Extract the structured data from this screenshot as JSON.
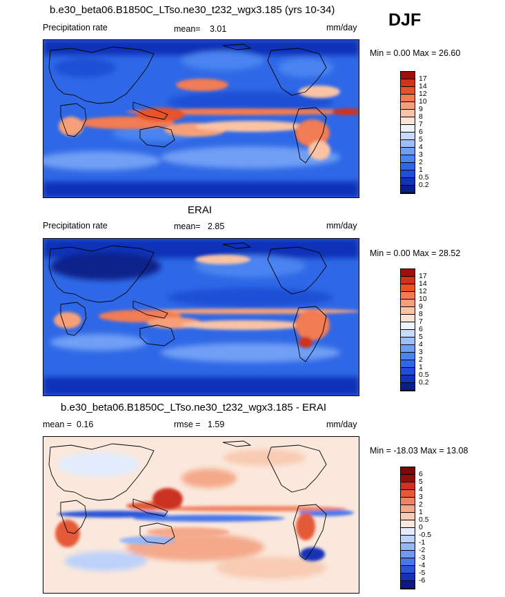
{
  "season": "DJF",
  "colors": {
    "precip_scale": [
      "#08208a",
      "#1133b8",
      "#1f4fd6",
      "#2f68e6",
      "#4a84f0",
      "#6f9ff5",
      "#9dbff8",
      "#c8dcfa",
      "#eef4fc",
      "#fbe3d3",
      "#f9c3a4",
      "#f6a07a",
      "#f27b52",
      "#e8522b",
      "#d2321a",
      "#a00f0b"
    ],
    "diff_scale": [
      "#0a1a80",
      "#1333b5",
      "#2a55d8",
      "#4a78ea",
      "#6f98f2",
      "#96b6f6",
      "#bcd2f9",
      "#e2ecfc",
      "#fbe8dc",
      "#f8cbb2",
      "#f4a98a",
      "#ee8462",
      "#e45a38",
      "#cc3220",
      "#8e0f0c"
    ]
  },
  "panels": [
    {
      "title": "b.e30_beta06.B1850C_LTso.ne30_t232_wgx3.185 (yrs 10-34)",
      "left_label": "Precipitation rate",
      "stat1_label": "mean=",
      "stat1_value": "3.01",
      "stat2_label": "",
      "stat2_value": "",
      "units": "mm/day",
      "minmax": "Min =   0.00 Max =   26.60"
    },
    {
      "title": "ERAI",
      "left_label": "Precipitation rate",
      "stat1_label": "mean=",
      "stat1_value": "2.85",
      "stat2_label": "",
      "stat2_value": "",
      "units": "mm/day",
      "minmax": "Min =   0.00 Max =   28.52"
    },
    {
      "title": "b.e30_beta06.B1850C_LTso.ne30_t232_wgx3.185 - ERAI",
      "left_label": "mean =",
      "stat1_label": "",
      "stat1_value": "0.16",
      "stat2_label": "rmse =",
      "stat2_value": "1.59",
      "units": "mm/day",
      "minmax": "Min = -18.03 Max =  13.08"
    }
  ],
  "chart_data": [
    {
      "type": "heatmap",
      "title": "b.e30_beta06.B1850C_LTso.ne30_t232_wgx3.185 (yrs 10-34)",
      "variable": "Precipitation rate",
      "units": "mm/day",
      "mean": 3.01,
      "min": 0.0,
      "max": 26.6,
      "colorbar_levels": [
        0.2,
        0.5,
        1,
        2,
        3,
        4,
        5,
        6,
        7,
        8,
        9,
        10,
        12,
        14,
        17
      ],
      "colorbar_labels": [
        "17",
        "14",
        "12",
        "10",
        "9",
        "8",
        "7",
        "6",
        "5",
        "4",
        "3",
        "2",
        "1",
        "0.5",
        "0.2"
      ]
    },
    {
      "type": "heatmap",
      "title": "ERAI",
      "variable": "Precipitation rate",
      "units": "mm/day",
      "mean": 2.85,
      "min": 0.0,
      "max": 28.52,
      "colorbar_levels": [
        0.2,
        0.5,
        1,
        2,
        3,
        4,
        5,
        6,
        7,
        8,
        9,
        10,
        12,
        14,
        17
      ],
      "colorbar_labels": [
        "17",
        "14",
        "12",
        "10",
        "9",
        "8",
        "7",
        "6",
        "5",
        "4",
        "3",
        "2",
        "1",
        "0.5",
        "0.2"
      ]
    },
    {
      "type": "heatmap",
      "title": "b.e30_beta06.B1850C_LTso.ne30_t232_wgx3.185 - ERAI",
      "units": "mm/day",
      "mean": 0.16,
      "rmse": 1.59,
      "min": -18.03,
      "max": 13.08,
      "colorbar_levels": [
        -6,
        -5,
        -4,
        -3,
        -2,
        -1,
        -0.5,
        0,
        0.5,
        1,
        2,
        3,
        4,
        5,
        6
      ],
      "colorbar_labels": [
        "6",
        "5",
        "4",
        "3",
        "2",
        "1",
        "0.5",
        "0",
        "-0.5",
        "-1",
        "-2",
        "-3",
        "-4",
        "-5",
        "-6"
      ]
    }
  ]
}
